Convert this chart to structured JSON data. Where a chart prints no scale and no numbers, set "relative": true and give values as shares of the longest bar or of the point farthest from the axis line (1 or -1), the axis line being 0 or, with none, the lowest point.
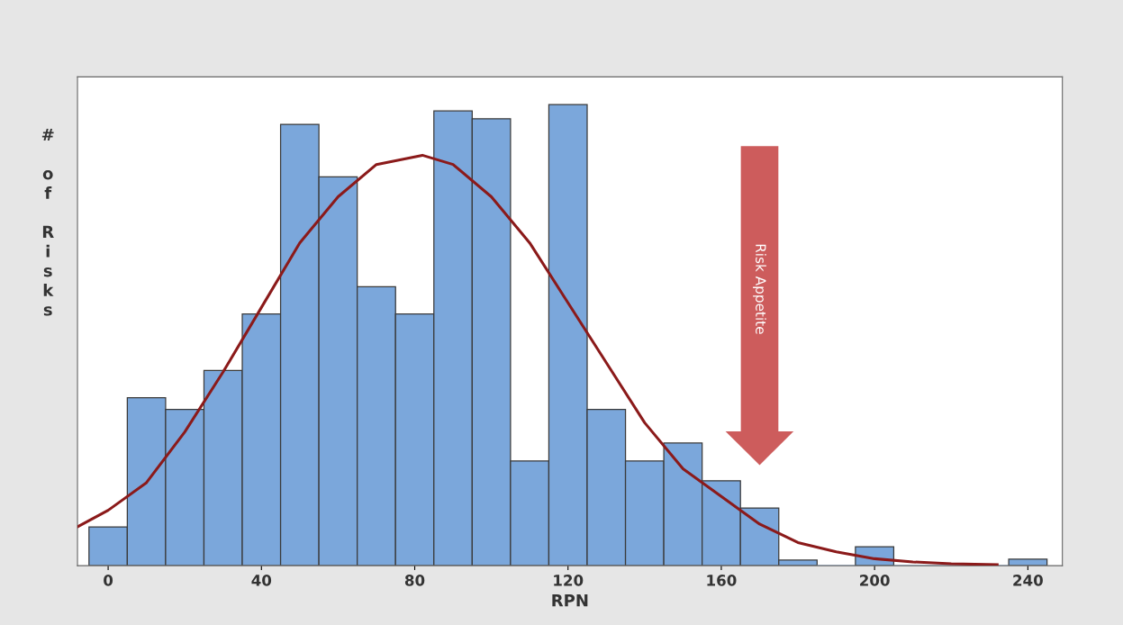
{
  "chart_data": {
    "type": "histogram",
    "relative": true,
    "xlabel": "RPN",
    "ylabel": "# of Risks",
    "bins": [
      -5,
      5,
      15,
      25,
      35,
      45,
      55,
      65,
      75,
      85,
      95,
      105,
      115,
      125,
      135,
      145,
      155,
      165,
      175,
      185,
      195,
      205,
      215,
      225,
      235,
      245
    ],
    "values": [
      0.084,
      0.364,
      0.339,
      0.423,
      0.546,
      0.957,
      0.843,
      0.605,
      0.546,
      0.986,
      0.969,
      0.227,
      1,
      0.339,
      0.227,
      0.266,
      0.184,
      0.125,
      0.012,
      0,
      0.041,
      0,
      0,
      0,
      0.014
    ],
    "color": "#7ba7db",
    "series": [
      {
        "type": "line",
        "color": "#8b1a1a",
        "x": [
          -8,
          0,
          10,
          20,
          30,
          40,
          50,
          60,
          70,
          82,
          90,
          100,
          110,
          120,
          130,
          140,
          150,
          160,
          170,
          180,
          190,
          200,
          210,
          220,
          232
        ],
        "values": [
          0.084,
          0.12,
          0.18,
          0.29,
          0.42,
          0.56,
          0.7,
          0.8,
          0.87,
          0.89,
          0.87,
          0.8,
          0.7,
          0.57,
          0.44,
          0.31,
          0.21,
          0.15,
          0.09,
          0.05,
          0.03,
          0.015,
          0.008,
          0.004,
          0.002
        ]
      }
    ],
    "xlim": [
      -8,
      249
    ],
    "xticks": [
      0,
      40,
      80,
      120,
      160,
      200,
      240
    ],
    "grid": false,
    "ref_lines": [
      {
        "axis": "x",
        "value": 170,
        "label": "Risk Appetite",
        "color": "#cd5c5c"
      }
    ]
  }
}
